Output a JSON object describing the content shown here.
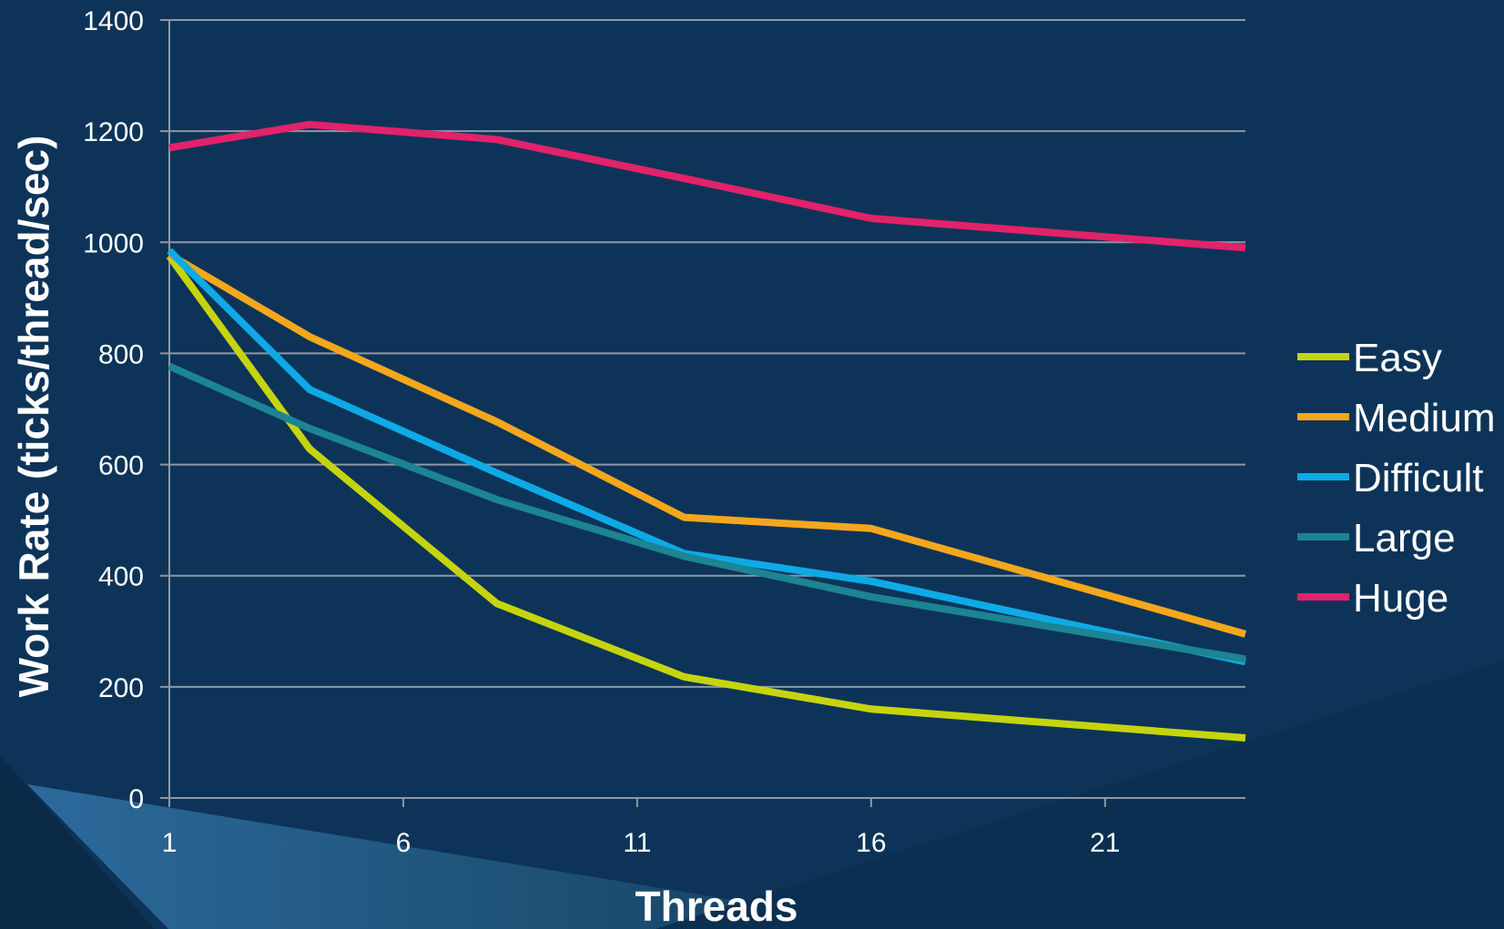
{
  "colors": {
    "background": "#0d3458",
    "grid": "#8e98a6",
    "text": "#ffffff"
  },
  "chart_data": {
    "type": "line",
    "title": "",
    "xlabel": "Threads",
    "ylabel": "Work Rate (ticks/thread/sec)",
    "xlim": [
      1,
      24
    ],
    "ylim": [
      0,
      1400
    ],
    "x_ticks": [
      1,
      6,
      11,
      16,
      21
    ],
    "y_ticks": [
      0,
      200,
      400,
      600,
      800,
      1000,
      1200,
      1400
    ],
    "grid": true,
    "legend_position": "right",
    "x": [
      1,
      4,
      8,
      12,
      16,
      24
    ],
    "series": [
      {
        "name": "Easy",
        "color": "#c6d40e",
        "values": [
          975,
          628,
          350,
          218,
          160,
          108
        ]
      },
      {
        "name": "Medium",
        "color": "#f5a71c",
        "values": [
          978,
          830,
          677,
          505,
          485,
          295
        ]
      },
      {
        "name": "Difficult",
        "color": "#0eaae6",
        "values": [
          985,
          735,
          585,
          440,
          390,
          245
        ]
      },
      {
        "name": "Large",
        "color": "#1c8493",
        "values": [
          777,
          665,
          537,
          435,
          362,
          250
        ]
      },
      {
        "name": "Huge",
        "color": "#e2226a",
        "values": [
          1170,
          1212,
          1185,
          1115,
          1043,
          990
        ]
      }
    ]
  }
}
